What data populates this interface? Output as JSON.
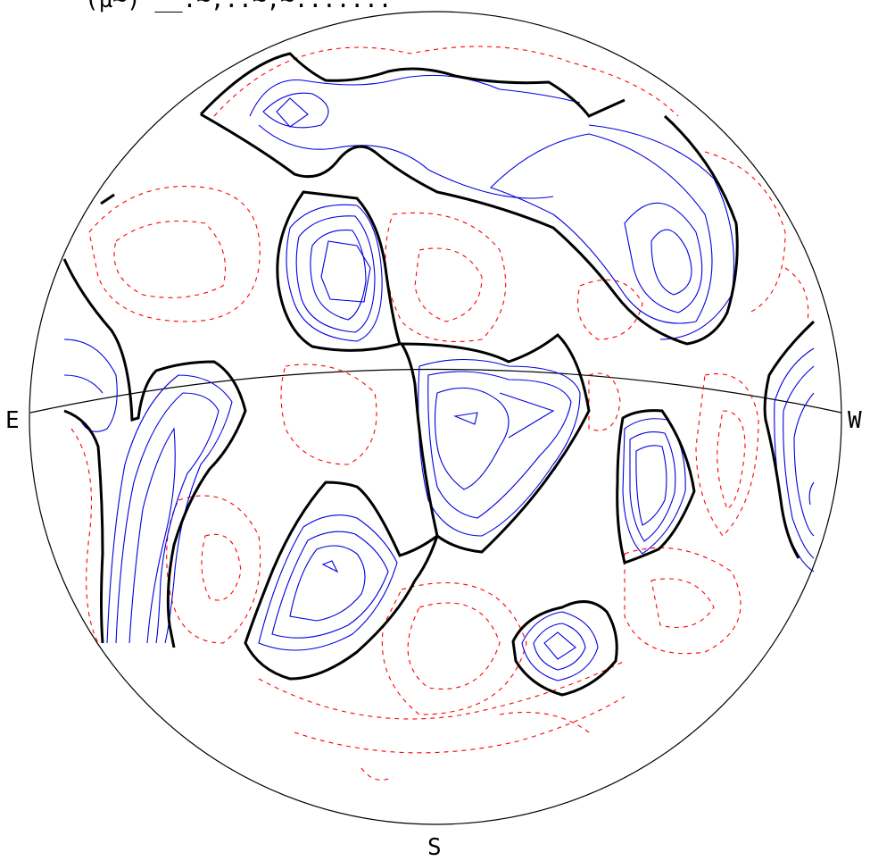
{
  "header_fragment": "(µ~)                            __:~,::~,~:::::::",
  "labels": {
    "east": "E",
    "west": "W",
    "south": "S"
  },
  "colors": {
    "outline": "#000000",
    "zero_contour": "#000000",
    "positive_contour": "#0000e0",
    "negative_contour": "#ff0000"
  }
}
